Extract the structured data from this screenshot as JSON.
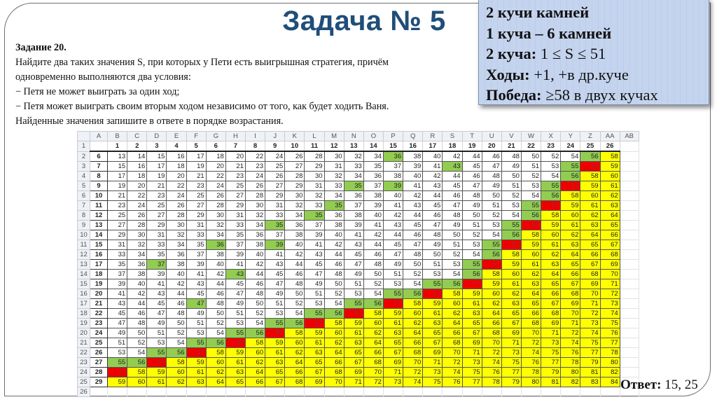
{
  "title": "Задача № 5",
  "task": {
    "heading": "Задание 20.",
    "lines": [
      "Найдите два таких значения S, при которых у Пети есть выигрышная стратегия, причём",
      "одновременно выполняются два условия:",
      "− Петя не может выиграть за один ход;",
      "− Петя может выиграть своим вторым ходом независимо от того, как будет ходить Ваня.",
      "Найденные значения запишите в ответе в порядке возрастания."
    ]
  },
  "info_box": {
    "line1": "2 кучи камней",
    "line2": "1 куча – 6 камней",
    "line3_label": "2 куча:",
    "line3_value": " 1 ≤ S ≤ 51",
    "line4_label": "Ходы:",
    "line4_value": " +1, +в др.куче",
    "line5_label": "Победа:",
    "line5_value": " ≥58 в двух кучах"
  },
  "answer": {
    "label": "Ответ:",
    "value": " 15, 25"
  },
  "spreadsheet": {
    "column_letters": [
      "A",
      "B",
      "C",
      "D",
      "E",
      "F",
      "G",
      "H",
      "I",
      "J",
      "K",
      "L",
      "M",
      "N",
      "O",
      "P",
      "Q",
      "R",
      "S",
      "T",
      "U",
      "V",
      "W",
      "X",
      "Y",
      "Z",
      "AA",
      "AB"
    ],
    "column_labels": [
      1,
      2,
      3,
      4,
      5,
      6,
      7,
      8,
      9,
      10,
      11,
      12,
      13,
      14,
      15,
      16,
      17,
      18,
      19,
      20,
      21,
      22,
      23,
      24,
      25,
      26
    ],
    "row_labels": [
      6,
      7,
      8,
      9,
      10,
      11,
      12,
      13,
      14,
      15,
      16,
      17,
      18,
      19,
      20,
      21,
      22,
      23,
      24,
      25,
      26,
      27,
      28,
      29
    ],
    "values": [
      [
        13,
        14,
        15,
        16,
        17,
        18,
        20,
        22,
        24,
        26,
        28,
        30,
        32,
        34,
        36,
        38,
        40,
        42,
        44,
        46,
        48,
        50,
        52,
        54,
        56,
        58
      ],
      [
        15,
        16,
        17,
        18,
        19,
        20,
        21,
        23,
        25,
        27,
        29,
        31,
        33,
        35,
        37,
        39,
        41,
        43,
        45,
        47,
        49,
        51,
        53,
        55,
        57,
        59
      ],
      [
        17,
        18,
        19,
        20,
        21,
        22,
        23,
        24,
        26,
        28,
        30,
        32,
        34,
        36,
        38,
        40,
        42,
        44,
        46,
        48,
        50,
        52,
        54,
        56,
        58,
        60
      ],
      [
        19,
        20,
        21,
        22,
        23,
        24,
        25,
        26,
        27,
        29,
        31,
        33,
        35,
        37,
        39,
        41,
        43,
        45,
        47,
        49,
        51,
        53,
        55,
        57,
        59,
        61
      ],
      [
        21,
        22,
        23,
        24,
        25,
        26,
        27,
        28,
        29,
        30,
        32,
        34,
        36,
        38,
        40,
        42,
        44,
        46,
        48,
        50,
        52,
        54,
        56,
        58,
        60,
        62
      ],
      [
        23,
        24,
        25,
        26,
        27,
        28,
        29,
        30,
        31,
        32,
        33,
        35,
        37,
        39,
        41,
        43,
        45,
        47,
        49,
        51,
        53,
        55,
        57,
        59,
        61,
        63
      ],
      [
        25,
        26,
        27,
        28,
        29,
        30,
        31,
        32,
        33,
        34,
        35,
        36,
        38,
        40,
        42,
        44,
        46,
        48,
        50,
        52,
        54,
        56,
        58,
        60,
        62,
        64
      ],
      [
        27,
        28,
        29,
        30,
        31,
        32,
        33,
        34,
        35,
        36,
        37,
        38,
        39,
        41,
        43,
        45,
        47,
        49,
        51,
        53,
        55,
        57,
        59,
        61,
        63,
        65
      ],
      [
        29,
        30,
        31,
        32,
        33,
        34,
        35,
        36,
        37,
        38,
        39,
        40,
        41,
        42,
        44,
        46,
        48,
        50,
        52,
        54,
        56,
        58,
        60,
        62,
        64,
        66
      ],
      [
        31,
        32,
        33,
        34,
        35,
        36,
        37,
        38,
        39,
        40,
        41,
        42,
        43,
        44,
        45,
        47,
        49,
        51,
        53,
        55,
        57,
        59,
        61,
        63,
        65,
        67
      ],
      [
        33,
        34,
        35,
        36,
        37,
        38,
        39,
        40,
        41,
        42,
        43,
        44,
        45,
        46,
        47,
        48,
        50,
        52,
        54,
        56,
        58,
        60,
        62,
        64,
        66,
        68
      ],
      [
        35,
        36,
        37,
        38,
        39,
        40,
        41,
        42,
        43,
        44,
        45,
        46,
        47,
        48,
        49,
        50,
        51,
        53,
        55,
        57,
        59,
        61,
        63,
        65,
        67,
        69
      ],
      [
        37,
        38,
        39,
        40,
        41,
        42,
        43,
        44,
        45,
        46,
        47,
        48,
        49,
        50,
        51,
        52,
        53,
        54,
        56,
        58,
        60,
        62,
        64,
        66,
        68,
        70
      ],
      [
        39,
        40,
        41,
        42,
        43,
        44,
        45,
        46,
        47,
        48,
        49,
        50,
        51,
        52,
        53,
        54,
        55,
        56,
        57,
        59,
        61,
        63,
        65,
        67,
        69,
        71
      ],
      [
        41,
        42,
        43,
        44,
        45,
        46,
        47,
        48,
        49,
        50,
        51,
        52,
        53,
        54,
        55,
        56,
        57,
        58,
        59,
        60,
        62,
        64,
        66,
        68,
        70,
        72
      ],
      [
        43,
        44,
        45,
        46,
        47,
        48,
        49,
        50,
        51,
        52,
        53,
        54,
        55,
        56,
        57,
        58,
        59,
        60,
        61,
        62,
        63,
        65,
        67,
        69,
        71,
        73
      ],
      [
        45,
        46,
        47,
        48,
        49,
        50,
        51,
        52,
        53,
        54,
        55,
        56,
        57,
        58,
        59,
        60,
        61,
        62,
        63,
        64,
        65,
        66,
        68,
        70,
        72,
        74
      ],
      [
        47,
        48,
        49,
        50,
        51,
        52,
        53,
        54,
        55,
        56,
        57,
        58,
        59,
        60,
        61,
        62,
        63,
        64,
        65,
        66,
        67,
        68,
        69,
        71,
        73,
        75
      ],
      [
        49,
        50,
        51,
        52,
        53,
        54,
        55,
        56,
        57,
        58,
        59,
        60,
        61,
        62,
        63,
        64,
        65,
        66,
        67,
        68,
        69,
        70,
        71,
        72,
        74,
        76
      ],
      [
        51,
        52,
        53,
        54,
        55,
        56,
        57,
        58,
        59,
        60,
        61,
        62,
        63,
        64,
        65,
        66,
        67,
        68,
        69,
        70,
        71,
        72,
        73,
        74,
        75,
        77
      ],
      [
        53,
        54,
        55,
        56,
        57,
        58,
        59,
        60,
        61,
        62,
        63,
        64,
        65,
        66,
        67,
        68,
        69,
        70,
        71,
        72,
        73,
        74,
        75,
        76,
        77,
        78
      ],
      [
        55,
        56,
        57,
        58,
        59,
        60,
        61,
        62,
        63,
        64,
        65,
        66,
        67,
        68,
        69,
        70,
        71,
        72,
        73,
        74,
        75,
        76,
        77,
        78,
        79,
        80
      ],
      [
        57,
        58,
        59,
        60,
        61,
        62,
        63,
        64,
        65,
        66,
        67,
        68,
        69,
        70,
        71,
        72,
        73,
        74,
        75,
        76,
        77,
        78,
        79,
        80,
        81,
        82
      ],
      [
        59,
        60,
        61,
        62,
        63,
        64,
        65,
        66,
        67,
        68,
        69,
        70,
        71,
        72,
        73,
        74,
        75,
        76,
        77,
        78,
        79,
        80,
        81,
        82,
        83,
        84
      ]
    ],
    "color_rules": {
      "green_values": [
        55,
        56
      ],
      "red_value": 57,
      "yellow_min": 58
    },
    "extra_green_cells": [
      [
        6,
        15
      ],
      [
        7,
        18
      ],
      [
        9,
        13
      ],
      [
        9,
        15
      ],
      [
        11,
        12
      ],
      [
        12,
        11
      ],
      [
        13,
        9
      ],
      [
        15,
        6
      ],
      [
        15,
        9
      ],
      [
        17,
        3
      ],
      [
        18,
        7
      ],
      [
        21,
        5
      ]
    ],
    "colors": {
      "green": "#92cd52",
      "red": "#ee0000",
      "yellow": "#ffff00"
    },
    "total_rows_shown": 26
  }
}
